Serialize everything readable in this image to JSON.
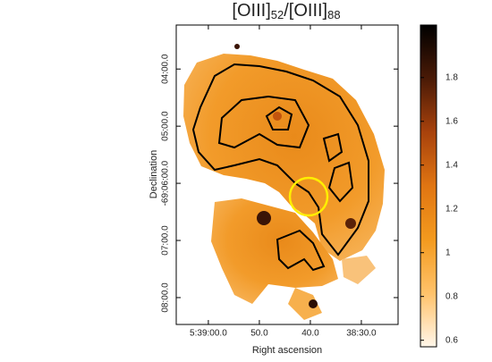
{
  "chart_data": {
    "type": "image",
    "title_parts": [
      "[OIII]",
      "52",
      "/[OIII]",
      "88"
    ],
    "xlabel": "Right ascension",
    "ylabel": "Declination",
    "xlim": [
      66.3,
      22.8
    ],
    "xticks": [
      {
        "value": 60,
        "label": "5:39:00.0"
      },
      {
        "value": 50,
        "label": "50.0"
      },
      {
        "value": 40,
        "label": "40.0"
      },
      {
        "value": 30,
        "label": "38:30.0"
      }
    ],
    "ylim": [
      -8.47,
      -3.23
    ],
    "yticks": [
      {
        "value": -4,
        "label": "04:00.0"
      },
      {
        "value": -5,
        "label": "05:00.0"
      },
      {
        "value": -6,
        "label": "-69:06:00.0"
      },
      {
        "value": -7,
        "label": "07:00.0"
      },
      {
        "value": -8,
        "label": "08:00.0"
      }
    ],
    "clim": [
      0.57,
      2.04
    ],
    "cticks": [
      0.6,
      0.8,
      1,
      {
        "value": 1.2,
        "label": "1.2"
      },
      1.4,
      1.6,
      1.8
    ],
    "colormap": [
      "#fff6ea",
      "#ffc26a",
      "#f39a1e",
      "#e07512",
      "#a8420c",
      "#4a1a06",
      "#000000"
    ],
    "contour_color": "#000000",
    "circle_color": "#ffee00"
  }
}
